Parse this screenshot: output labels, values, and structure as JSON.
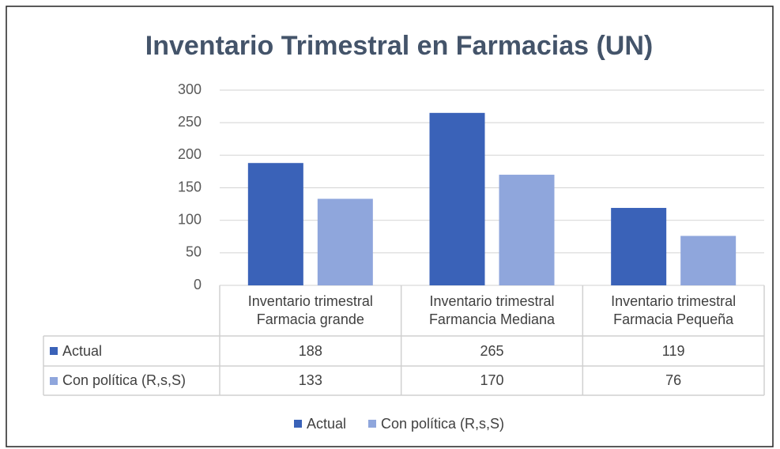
{
  "chart_data": {
    "type": "bar",
    "title": "Inventario Trimestral en Farmacias (UN)",
    "categories": [
      "Inventario trimestral Farmacia grande",
      "Inventario trimestral Farmancia Mediana",
      "Inventario trimestral Farmacia Pequeña"
    ],
    "series": [
      {
        "name": "Actual",
        "color": "#3a62b8",
        "values": [
          188,
          265,
          119
        ]
      },
      {
        "name": "Con política (R,s,S)",
        "color": "#8fa6dc",
        "values": [
          133,
          170,
          76
        ]
      }
    ],
    "ylim": [
      0,
      300
    ],
    "yticks": [
      0,
      50,
      100,
      150,
      200,
      250,
      300
    ],
    "grid": true,
    "legend": "bottom",
    "data_table": true
  }
}
